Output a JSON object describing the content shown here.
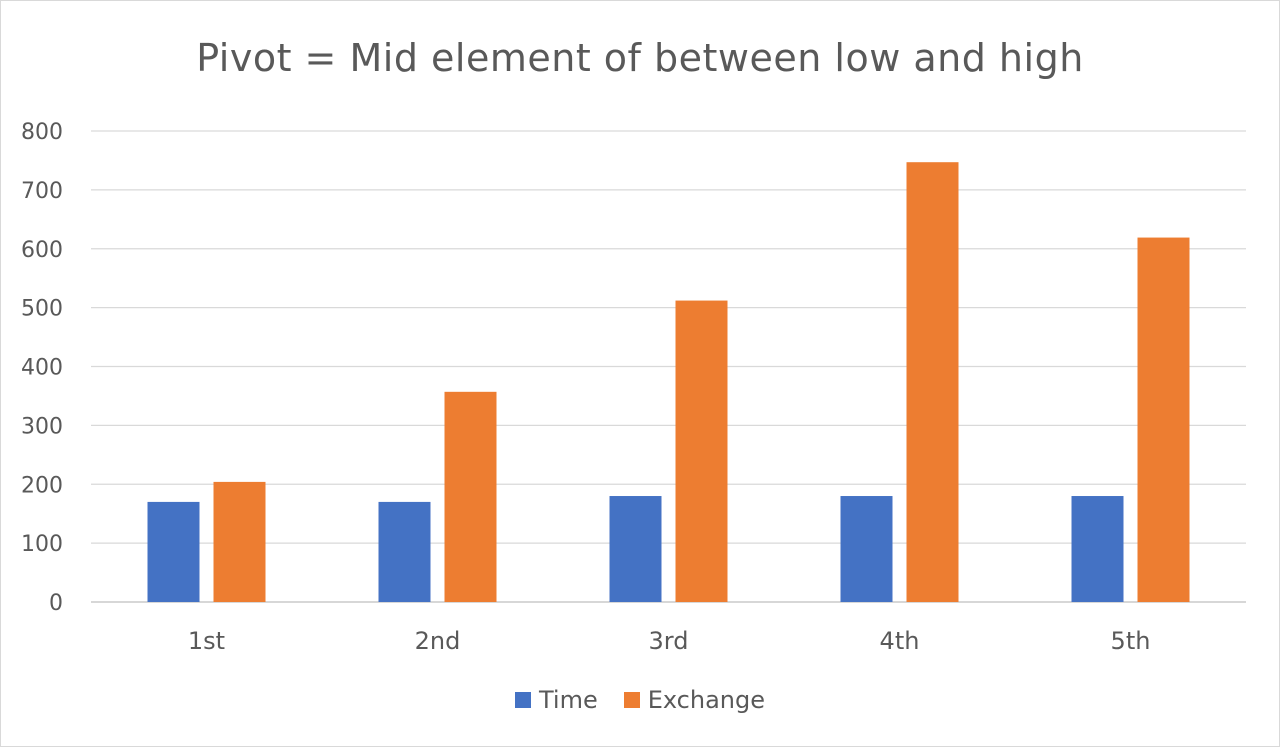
{
  "chart_data": {
    "type": "bar",
    "title": "Pivot = Mid element of between low and high",
    "categories": [
      "1st",
      "2nd",
      "3rd",
      "4th",
      "5th"
    ],
    "series": [
      {
        "name": "Time",
        "color": "#4472C4",
        "values": [
          170,
          170,
          180,
          180,
          180
        ]
      },
      {
        "name": "Exchange",
        "color": "#ED7D31",
        "values": [
          204,
          357,
          512,
          747,
          619
        ]
      }
    ],
    "ylim": [
      0,
      800
    ],
    "yticks": [
      0,
      100,
      200,
      300,
      400,
      500,
      600,
      700,
      800
    ],
    "xlabel": "",
    "ylabel": "",
    "grid": true,
    "legend": "bottom"
  }
}
